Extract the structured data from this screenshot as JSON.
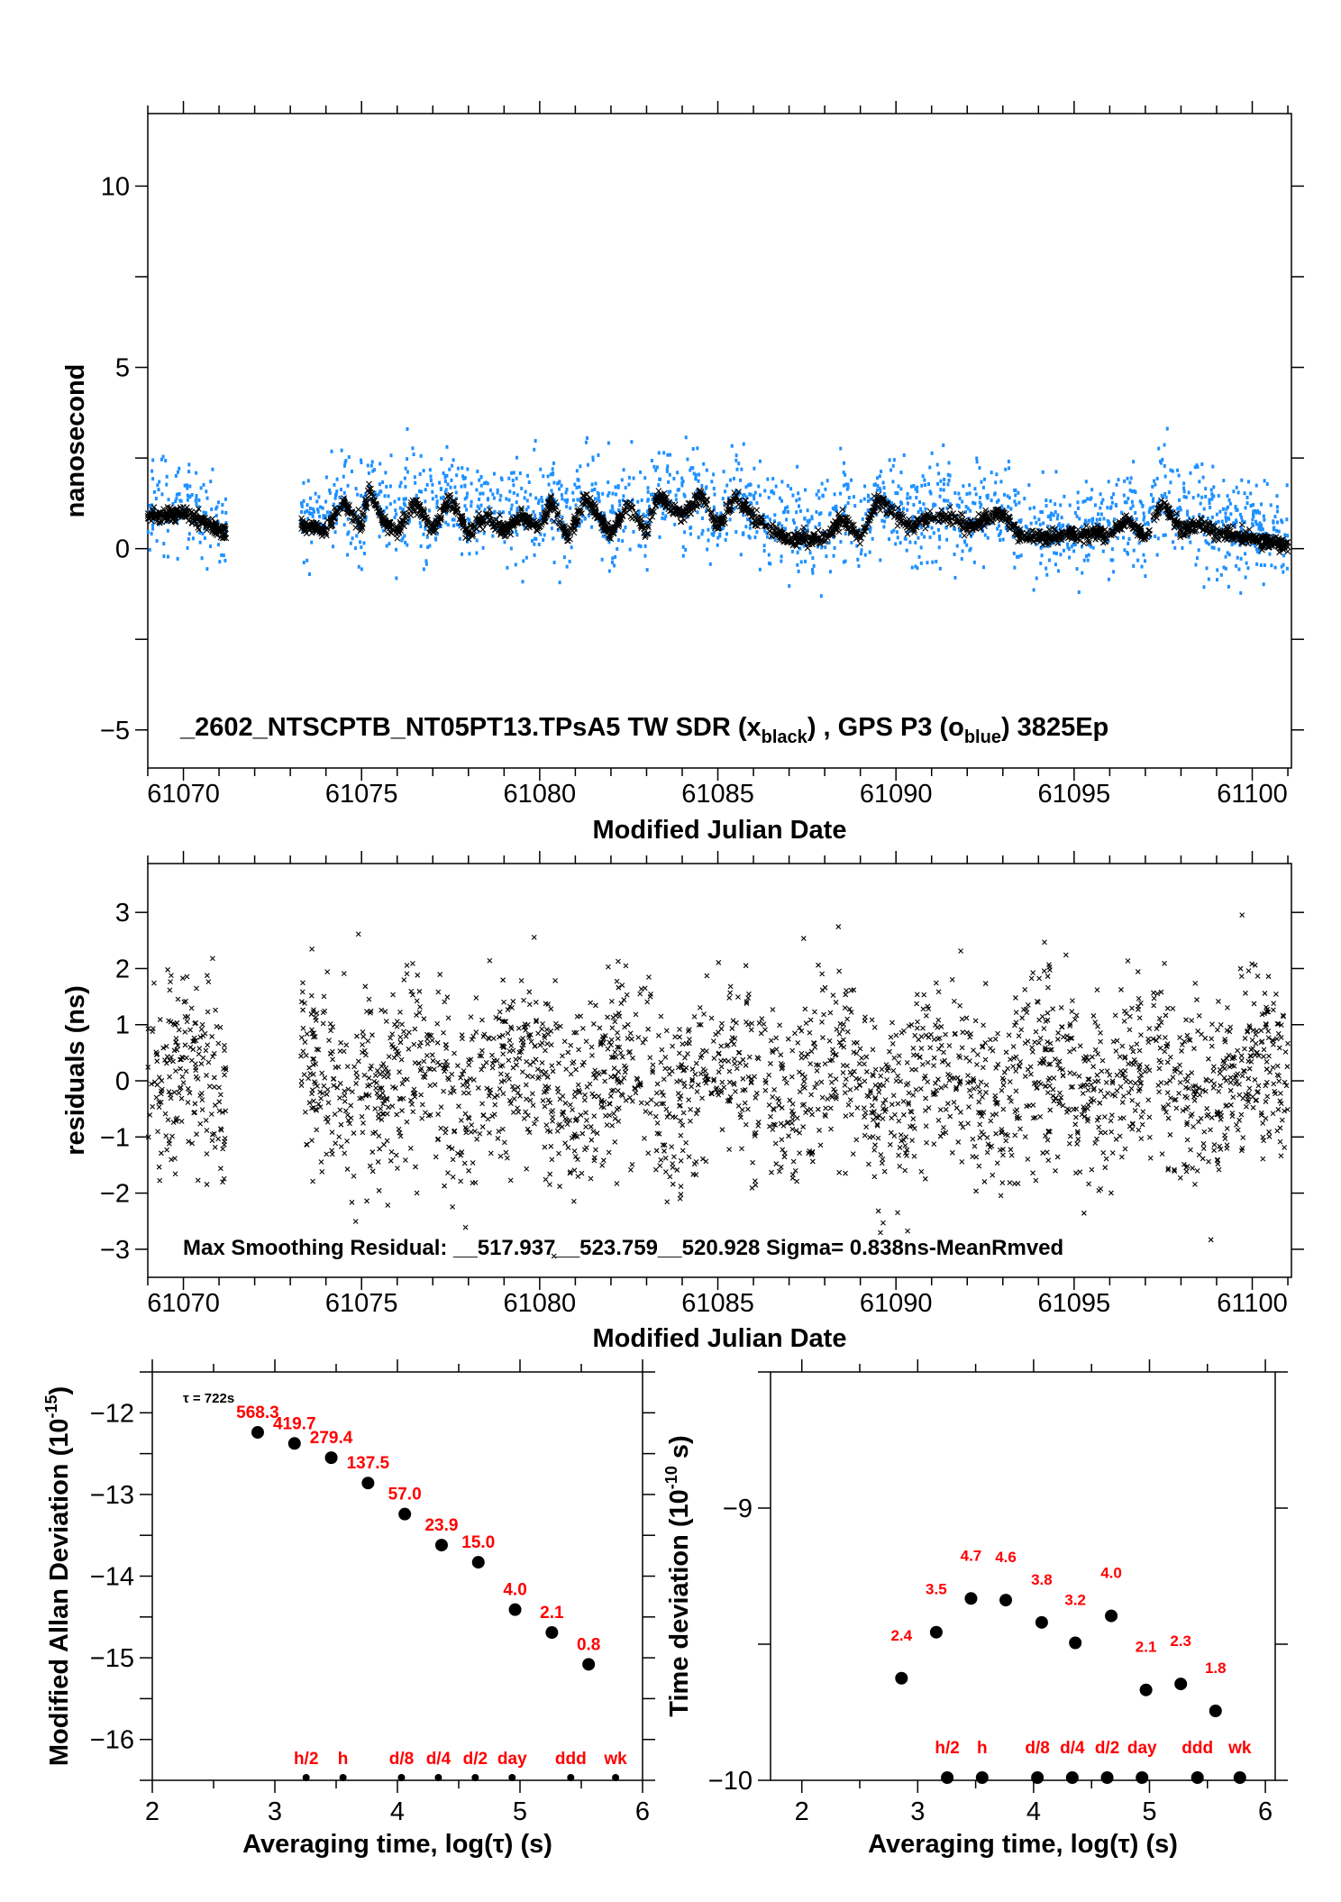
{
  "colors": {
    "black_series": "#000000",
    "blue_series": "#1e90ff",
    "labels": "#ff0000"
  },
  "chart_data": [
    {
      "type": "scatter",
      "xlabel": "Modified Julian Date",
      "ylabel": "nanosecond",
      "xlim": [
        61069.0,
        61101.1
      ],
      "ylim": [
        -6.05,
        12.0
      ],
      "xticks": [
        61070,
        61075,
        61080,
        61085,
        61090,
        61095,
        61100
      ],
      "yticks": [
        -5,
        0,
        5,
        10
      ],
      "annotation": {
        "main": "_2602_NTSCPTB_NT05PT13.TPsA5     TW SDR (x",
        "sub1": "black",
        "mid": ") ,  GPS P3 (o",
        "sub2": "blue",
        "end": ")  3825Ep"
      },
      "series": [
        {
          "name": "TW SDR",
          "marker": "x",
          "color": "#000000",
          "trend": [
            [
              61069.0,
              0.9
            ],
            [
              61069.5,
              0.9
            ],
            [
              61070,
              1.0
            ],
            [
              61070.5,
              0.8
            ],
            [
              61071,
              0.5
            ],
            [
              61071.2,
              0.5
            ],
            null,
            [
              61073.3,
              0.6
            ],
            [
              61073.8,
              0.6
            ],
            [
              61074,
              0.5
            ],
            [
              61074.5,
              1.3
            ],
            [
              61075,
              0.6
            ],
            [
              61075.2,
              1.6
            ],
            [
              61075.6,
              0.8
            ],
            [
              61076,
              0.5
            ],
            [
              61076.5,
              1.3
            ],
            [
              61077,
              0.5
            ],
            [
              61077.5,
              1.4
            ],
            [
              61078,
              0.4
            ],
            [
              61078.5,
              0.9
            ],
            [
              61079,
              0.5
            ],
            [
              61079.5,
              0.9
            ],
            [
              61080,
              0.5
            ],
            [
              61080.3,
              1.3
            ],
            [
              61080.8,
              0.3
            ],
            [
              61081.3,
              1.4
            ],
            [
              61082,
              0.4
            ],
            [
              61082.5,
              1.2
            ],
            [
              61083,
              0.4
            ],
            [
              61083.3,
              1.5
            ],
            [
              61084,
              0.9
            ],
            [
              61084.5,
              1.5
            ],
            [
              61085,
              0.6
            ],
            [
              61085.5,
              1.4
            ],
            [
              61086,
              0.9
            ],
            [
              61086.5,
              0.5
            ],
            [
              61087,
              0.25
            ],
            [
              61088,
              0.3
            ],
            [
              61088.5,
              0.8
            ],
            [
              61089,
              0.3
            ],
            [
              61089.5,
              1.4
            ],
            [
              61090,
              0.9
            ],
            [
              61090.5,
              0.6
            ],
            [
              61091,
              0.9
            ],
            [
              61091.5,
              0.9
            ],
            [
              61092,
              0.6
            ],
            [
              61093,
              1.0
            ],
            [
              61093.5,
              0.3
            ],
            [
              61094,
              0.3
            ],
            [
              61095,
              0.4
            ],
            [
              61096,
              0.4
            ],
            [
              61096.5,
              0.8
            ],
            [
              61097,
              0.3
            ],
            [
              61097.5,
              1.3
            ],
            [
              61098,
              0.5
            ],
            [
              61098.5,
              0.7
            ],
            [
              61099,
              0.4
            ],
            [
              61100,
              0.3
            ],
            [
              61101,
              0.1
            ]
          ]
        },
        {
          "name": "GPS P3",
          "marker": "o",
          "color": "#1e90ff"
        }
      ]
    },
    {
      "type": "scatter",
      "xlabel": "Modified Julian Date",
      "ylabel": "residuals (ns)",
      "xlim": [
        61069.0,
        61101.1
      ],
      "ylim": [
        -3.5,
        3.87
      ],
      "xticks": [
        61070,
        61075,
        61080,
        61085,
        61090,
        61095,
        61100
      ],
      "yticks": [
        -3,
        -2,
        -1,
        0,
        1,
        2,
        3
      ],
      "annotation": "Max Smoothing Residual: __517.937__523.759__520.928  Sigma= 0.838ns-MeanRmved",
      "sigma": 0.838
    },
    {
      "type": "scatter",
      "xlabel": "Averaging time, log(τ) (s)",
      "ylabel": "Modified Allan Deviation (10",
      "ylabel_sup": "-15",
      "ylabel_end": ")",
      "xlim": [
        2,
        6
      ],
      "ylim": [
        -16.5,
        -11.5
      ],
      "xticks": [
        2,
        3,
        4,
        5,
        6
      ],
      "yticks": [
        -16,
        -15,
        -14,
        -13,
        -12
      ],
      "note": "τ = 722s",
      "x": [
        2.86,
        3.16,
        3.46,
        3.76,
        4.06,
        4.36,
        4.66,
        4.96,
        5.26,
        5.56
      ],
      "y": [
        -12.24,
        -12.375,
        -12.55,
        -12.86,
        -13.24,
        -13.62,
        -13.83,
        -14.41,
        -14.69,
        -15.08
      ],
      "labels": [
        "568.3",
        "419.7",
        "279.4",
        "137.5",
        "57.0",
        "23.9",
        "15.0",
        "4.0",
        "2.1",
        "0.8"
      ],
      "markers": [
        {
          "label": "h/2",
          "x": 3.255
        },
        {
          "label": "h",
          "x": 3.556
        },
        {
          "label": "d/8",
          "x": 4.033
        },
        {
          "label": "d/4",
          "x": 4.334
        },
        {
          "label": "d/2",
          "x": 4.635
        },
        {
          "label": "day",
          "x": 4.936
        },
        {
          "label": "ddd",
          "x": 5.414
        },
        {
          "label": "wk",
          "x": 5.78
        }
      ]
    },
    {
      "type": "scatter",
      "xlabel": "Averaging time, log(τ) (s)",
      "ylabel": "Time deviation (10",
      "ylabel_sup": "-10",
      "ylabel_end": " s)",
      "xlim": [
        1.73,
        6.085
      ],
      "ylim": [
        -10,
        -8.5
      ],
      "xticks": [
        2,
        3,
        4,
        5,
        6
      ],
      "yticks": [
        -10,
        -9
      ],
      "x": [
        2.86,
        3.16,
        3.46,
        3.76,
        4.07,
        4.36,
        4.67,
        4.97,
        5.27,
        5.57
      ],
      "y": [
        -9.625,
        -9.456,
        -9.332,
        -9.338,
        -9.42,
        -9.495,
        -9.396,
        -9.668,
        -9.646,
        -9.745
      ],
      "labels": [
        "2.4",
        "3.5",
        "4.7",
        "4.6",
        "3.8",
        "3.2",
        "4.0",
        "2.1",
        "2.3",
        "1.8"
      ],
      "markers": [
        {
          "label": "h/2",
          "x": 3.255
        },
        {
          "label": "h",
          "x": 3.556
        },
        {
          "label": "d/8",
          "x": 4.033
        },
        {
          "label": "d/4",
          "x": 4.334
        },
        {
          "label": "d/2",
          "x": 4.635
        },
        {
          "label": "day",
          "x": 4.936
        },
        {
          "label": "ddd",
          "x": 5.414
        },
        {
          "label": "wk",
          "x": 5.78
        }
      ]
    }
  ]
}
